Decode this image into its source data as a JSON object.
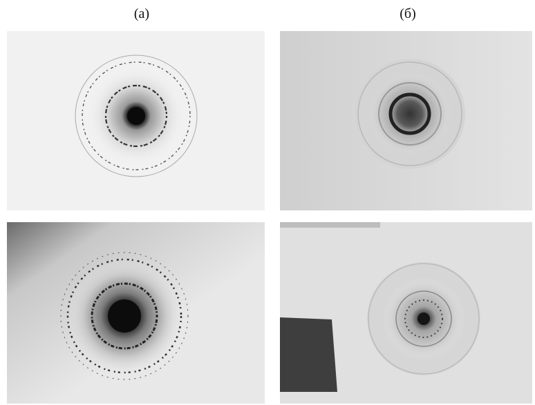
{
  "labels": [
    "(а)",
    "(б)"
  ]
}
